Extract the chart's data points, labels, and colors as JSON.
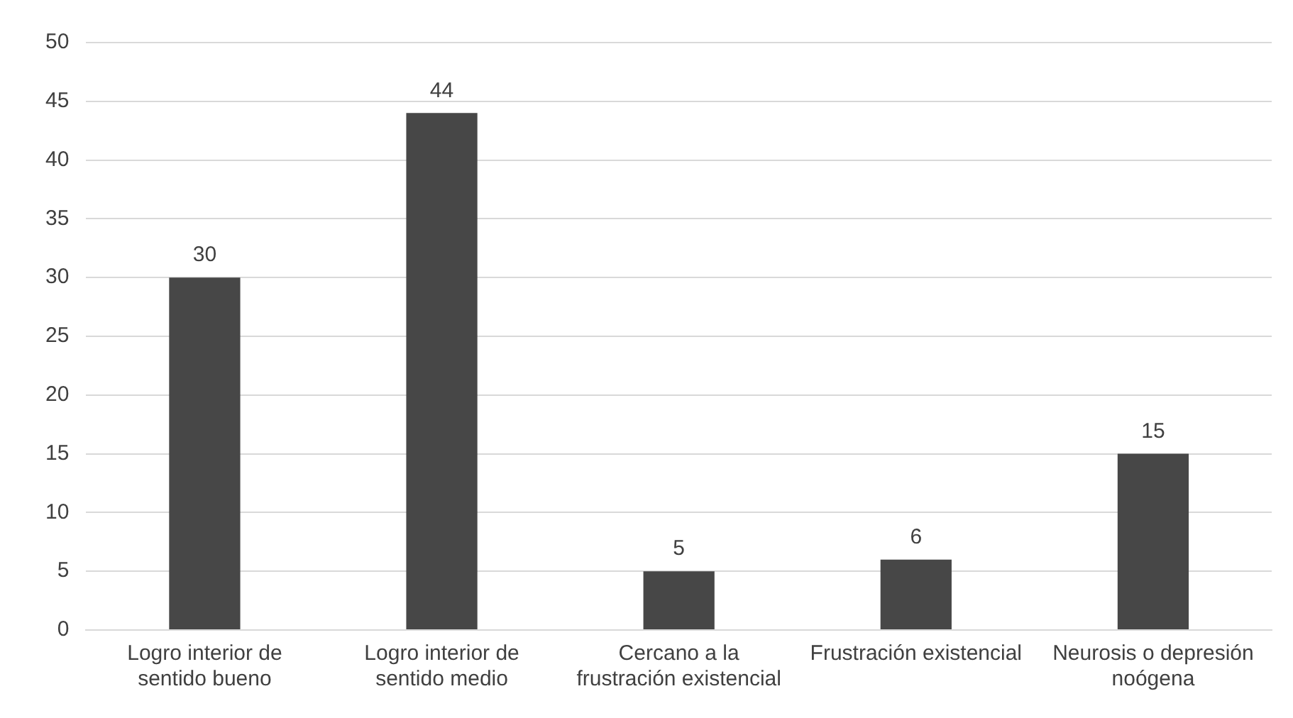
{
  "chart_data": {
    "type": "bar",
    "categories": [
      "Logro interior de sentido bueno",
      "Logro interior de sentido medio",
      "Cercano a la frustración existencial",
      "Frustración existencial",
      "Neurosis o depresión noógena"
    ],
    "values": [
      30,
      44,
      5,
      6,
      15
    ],
    "color": "#474747",
    "ylim": [
      0,
      50
    ],
    "yticks": [
      0,
      5,
      10,
      15,
      20,
      25,
      30,
      35,
      40,
      45,
      50
    ],
    "grid": "y",
    "data_labels": true
  }
}
